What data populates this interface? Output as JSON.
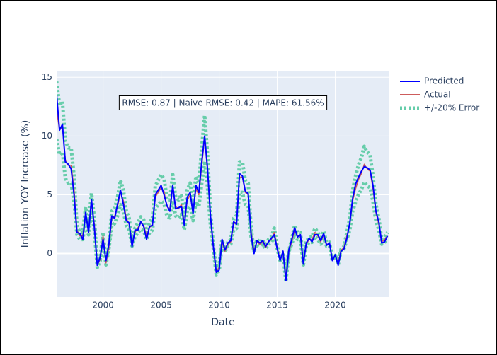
{
  "chart_data": {
    "type": "line",
    "xlabel": "Date",
    "ylabel": "Inflation YOY Increase (%)",
    "annotation": "RMSE: 0.87 | Naive RMSE: 0.42 | MAPE: 61.56%",
    "xlim": [
      1996,
      2024.6
    ],
    "xticks": [
      2000,
      2005,
      2010,
      2015,
      2020
    ],
    "ylim": [
      -3.7,
      15.5
    ],
    "yticks": [
      0,
      5,
      10,
      15
    ],
    "grid": true,
    "legend": "outside-top-right",
    "x": [
      1996,
      1996.25,
      1996.5,
      1996.75,
      1997,
      1997.25,
      1997.5,
      1997.75,
      1998,
      1998.25,
      1998.5,
      1998.75,
      1999,
      1999.25,
      1999.5,
      1999.75,
      2000,
      2000.25,
      2000.5,
      2000.75,
      2001,
      2001.25,
      2001.5,
      2001.75,
      2002,
      2002.25,
      2002.5,
      2002.75,
      2003,
      2003.25,
      2003.5,
      2003.75,
      2004,
      2004.25,
      2004.5,
      2004.75,
      2005,
      2005.25,
      2005.5,
      2005.75,
      2006,
      2006.25,
      2006.5,
      2006.75,
      2007,
      2007.25,
      2007.5,
      2007.75,
      2008,
      2008.25,
      2008.5,
      2008.75,
      2009,
      2009.25,
      2009.5,
      2009.75,
      2010,
      2010.25,
      2010.5,
      2010.75,
      2011,
      2011.25,
      2011.5,
      2011.75,
      2012,
      2012.25,
      2012.5,
      2012.75,
      2013,
      2013.25,
      2013.5,
      2013.75,
      2014,
      2014.25,
      2014.5,
      2014.75,
      2015,
      2015.25,
      2015.5,
      2015.75,
      2016,
      2016.25,
      2016.5,
      2016.75,
      2017,
      2017.25,
      2017.5,
      2017.75,
      2018,
      2018.25,
      2018.5,
      2018.75,
      2019,
      2019.25,
      2019.5,
      2019.75,
      2020,
      2020.25,
      2020.5,
      2020.75,
      2021,
      2021.25,
      2021.5,
      2021.75,
      2022,
      2022.25,
      2022.5,
      2022.75,
      2023,
      2023.25,
      2023.5,
      2023.75,
      2024,
      2024.25,
      2024.5
    ],
    "series": [
      {
        "name": "Predicted",
        "color": "#0000ff",
        "values": [
          13.5,
          10.5,
          11.0,
          7.8,
          7.6,
          7.2,
          5.0,
          1.8,
          1.7,
          1.2,
          3.5,
          1.8,
          4.6,
          2.2,
          -1.0,
          -0.3,
          1.2,
          -0.6,
          0.8,
          3.2,
          3.0,
          4.2,
          5.4,
          4.2,
          2.8,
          2.6,
          0.6,
          2.0,
          2.0,
          2.7,
          2.3,
          1.2,
          2.3,
          2.4,
          5.0,
          5.4,
          5.8,
          5.0,
          4.1,
          3.6,
          5.8,
          3.8,
          3.9,
          4.0,
          2.4,
          4.8,
          5.2,
          3.4,
          5.8,
          5.2,
          7.8,
          10.0,
          7.2,
          3.2,
          0.6,
          -1.6,
          -1.4,
          1.2,
          0.3,
          0.9,
          1.1,
          2.7,
          2.5,
          6.8,
          6.6,
          5.3,
          5.1,
          1.6,
          0.0,
          1.1,
          0.9,
          1.1,
          0.6,
          1.0,
          1.3,
          1.6,
          0.4,
          -0.6,
          0.2,
          -2.3,
          0.3,
          1.2,
          2.2,
          1.4,
          1.6,
          -0.9,
          0.9,
          1.3,
          1.0,
          1.6,
          1.6,
          1.1,
          1.7,
          0.7,
          0.9,
          -0.6,
          -0.1,
          -1.0,
          0.2,
          0.4,
          1.3,
          2.6,
          4.7,
          5.9,
          6.5,
          7.0,
          7.4,
          7.3,
          7.1,
          5.8,
          3.6,
          2.7,
          0.9,
          1.0,
          1.5
        ]
      },
      {
        "name": "Actual",
        "color": "#cd5c5c",
        "values": [
          12.2,
          10.5,
          10.8,
          8.0,
          7.5,
          7.5,
          5.5,
          2.0,
          1.5,
          1.5,
          3.3,
          2.0,
          4.3,
          2.5,
          -1.0,
          -0.5,
          1.5,
          -0.8,
          0.5,
          3.0,
          3.2,
          4.0,
          5.2,
          4.5,
          3.0,
          2.5,
          0.8,
          1.8,
          2.2,
          2.6,
          2.4,
          1.5,
          2.2,
          2.5,
          4.8,
          5.2,
          5.6,
          5.3,
          4.0,
          3.8,
          5.6,
          4.0,
          3.8,
          4.2,
          2.5,
          4.5,
          5.0,
          3.5,
          5.5,
          5.0,
          7.5,
          9.8,
          7.0,
          3.0,
          0.5,
          -1.5,
          -1.2,
          1.0,
          0.2,
          0.8,
          1.0,
          2.5,
          2.7,
          6.5,
          6.5,
          5.2,
          5.0,
          1.8,
          0.2,
          1.0,
          0.8,
          1.0,
          0.5,
          1.0,
          1.2,
          1.8,
          0.5,
          -0.5,
          0.0,
          -2.0,
          0.2,
          1.0,
          2.0,
          1.5,
          1.5,
          -0.8,
          0.8,
          1.2,
          1.2,
          1.8,
          1.5,
          1.0,
          1.6,
          0.8,
          0.8,
          -0.5,
          -0.2,
          -0.8,
          0.3,
          0.5,
          1.5,
          2.5,
          4.5,
          5.5,
          6.3,
          6.8,
          7.6,
          7.2,
          7.0,
          5.5,
          3.5,
          2.5,
          1.0,
          1.2,
          1.5
        ]
      },
      {
        "name": "+/-20% Error",
        "color": "#66cdaa",
        "upper": [
          14.64,
          12.6,
          12.96,
          9.6,
          9,
          9,
          6.6,
          2.4,
          1.8,
          1.8,
          3.96,
          2.4,
          5.16,
          3,
          -0.8,
          -0.4,
          1.8,
          -0.64,
          0.6,
          3.6,
          3.84,
          4.8,
          6.24,
          5.4,
          3.6,
          3,
          0.96,
          2.16,
          2.64,
          3.12,
          2.88,
          1.8,
          2.64,
          3,
          5.76,
          6.24,
          6.72,
          6.36,
          4.8,
          4.56,
          6.72,
          4.8,
          4.56,
          5.04,
          3,
          5.4,
          6,
          4.2,
          6.6,
          6,
          9,
          11.76,
          8.4,
          3.6,
          0.6,
          -1.2,
          -0.96,
          1.2,
          0.24,
          0.96,
          1.2,
          3,
          3.24,
          7.8,
          7.8,
          6.24,
          6,
          2.16,
          0.24,
          1.2,
          0.96,
          1.2,
          0.6,
          1.2,
          1.44,
          2.16,
          0.6,
          -0.4,
          0,
          -1.6,
          0.24,
          1.2,
          2.4,
          1.8,
          1.8,
          -0.64,
          0.96,
          1.44,
          1.44,
          2.16,
          1.8,
          1.2,
          1.92,
          0.96,
          0.96,
          -0.4,
          -0.16,
          -0.64,
          0.36,
          0.6,
          1.8,
          3,
          5.4,
          6.6,
          7.56,
          8.16,
          9.12,
          8.64,
          8.4,
          6.6,
          4.2,
          3,
          1.2,
          1.44,
          1.8
        ],
        "lower": [
          9.76,
          8.4,
          8.64,
          6.4,
          6,
          6,
          4.4,
          1.6,
          1.2,
          1.2,
          2.64,
          1.6,
          3.44,
          2,
          -1.2,
          -0.6,
          1.2,
          -0.96,
          0.4,
          2.4,
          2.56,
          3.2,
          4.16,
          3.6,
          2.4,
          2,
          0.64,
          1.44,
          1.76,
          2.08,
          1.92,
          1.2,
          1.76,
          2,
          3.84,
          4.16,
          4.48,
          4.24,
          3.2,
          3.04,
          4.48,
          3.2,
          3.04,
          3.36,
          2,
          3.6,
          4,
          2.8,
          4.4,
          4,
          6,
          7.84,
          5.6,
          2.4,
          0.4,
          -1.8,
          -1.44,
          0.8,
          0.16,
          0.64,
          0.8,
          2,
          2.16,
          5.2,
          5.2,
          4.16,
          4,
          1.44,
          0.16,
          0.8,
          0.64,
          0.8,
          0.4,
          0.8,
          0.96,
          1.44,
          0.4,
          -0.6,
          0,
          -2.4,
          0.16,
          0.8,
          1.6,
          1.2,
          1.2,
          -0.96,
          0.64,
          0.96,
          0.96,
          1.44,
          1.2,
          0.8,
          1.28,
          0.64,
          0.64,
          -0.6,
          -0.24,
          -0.96,
          0.24,
          0.4,
          1.2,
          2,
          3.6,
          4.4,
          5.04,
          5.44,
          6.08,
          5.76,
          5.6,
          4.4,
          2.8,
          2,
          0.8,
          0.96,
          1.2
        ]
      }
    ]
  }
}
